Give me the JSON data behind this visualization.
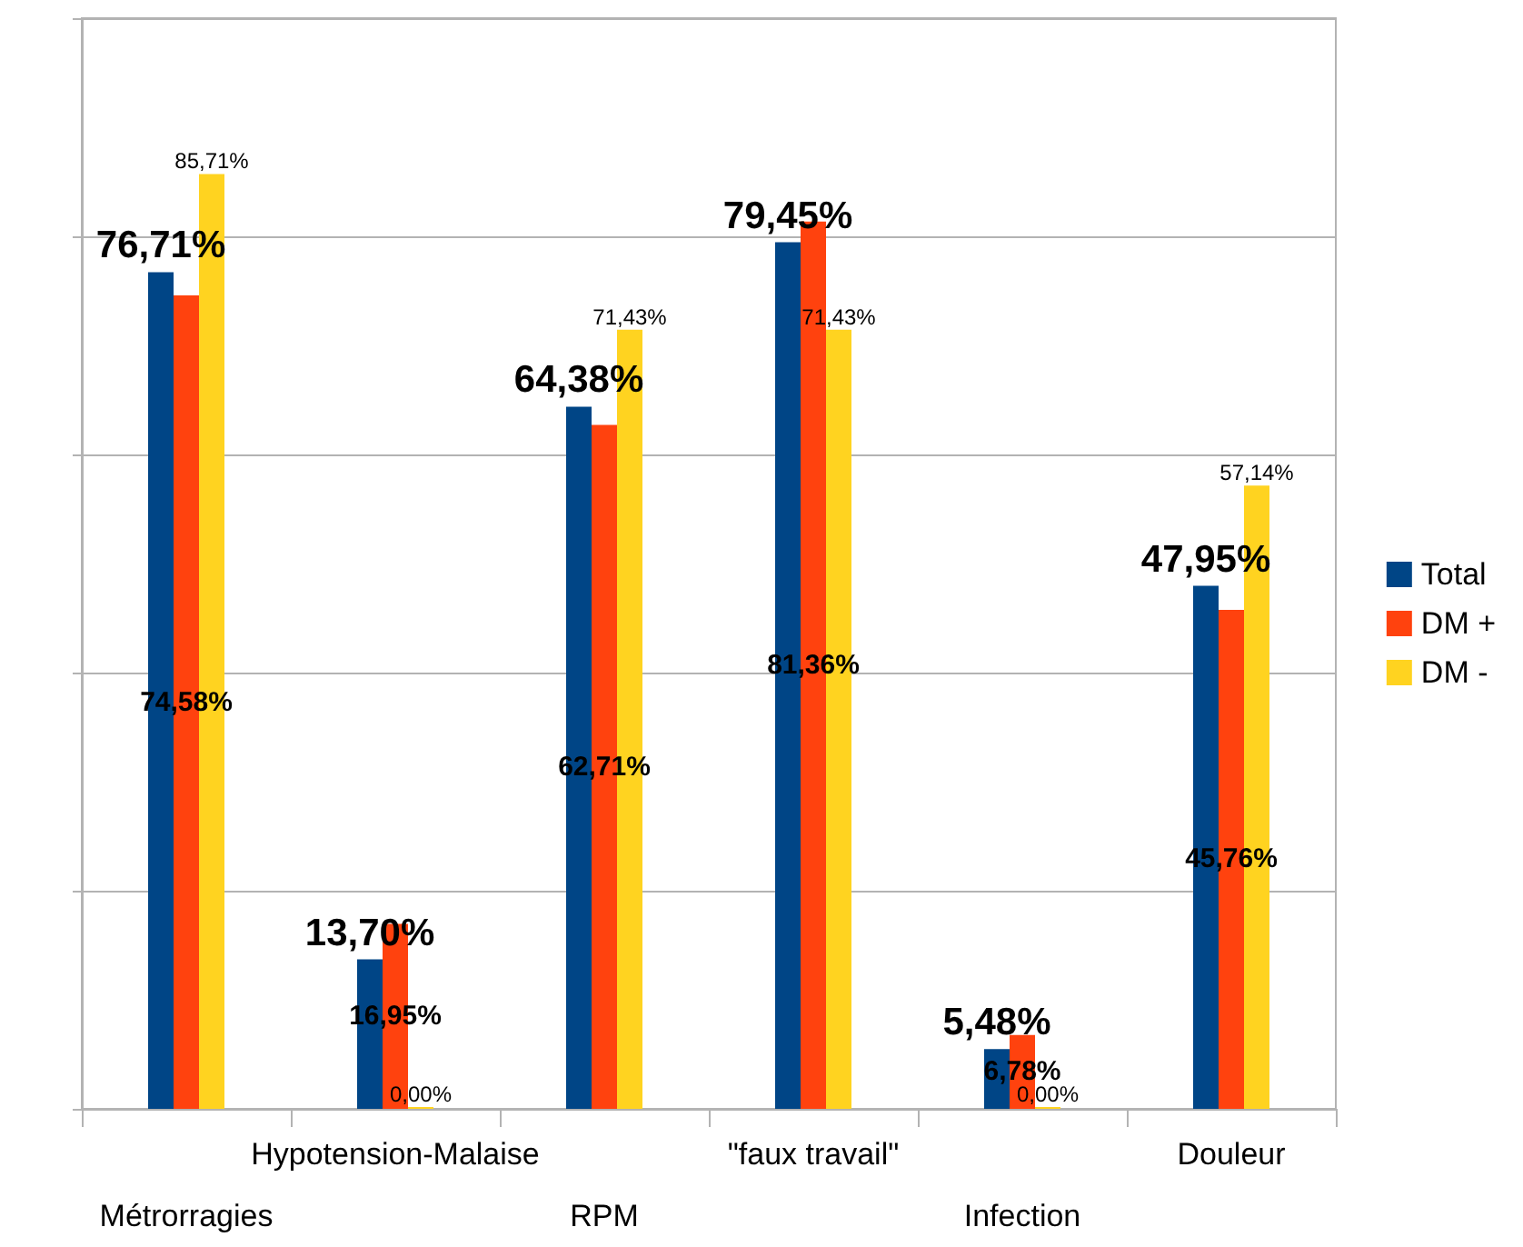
{
  "chart_data": {
    "type": "bar",
    "categories": [
      "Métrorragies",
      "Hypotension-Malaise",
      "RPM",
      "\"faux travail\"",
      "Infection",
      "Douleur"
    ],
    "series": [
      {
        "name": "Total",
        "color": "#004586",
        "values": [
          76.71,
          13.7,
          64.38,
          79.45,
          5.48,
          47.95
        ],
        "value_labels": [
          "76,71%",
          "13,70%",
          "64,38%",
          "79,45%",
          "5,48%",
          "47,95%"
        ]
      },
      {
        "name": "DM +",
        "color": "#ff420e",
        "values": [
          74.58,
          16.95,
          62.71,
          81.36,
          6.78,
          45.76
        ],
        "value_labels": [
          "74,58%",
          "16,95%",
          "62,71%",
          "81,36%",
          "6,78%",
          "45,76%"
        ]
      },
      {
        "name": "DM -",
        "color": "#ffd320",
        "values": [
          85.71,
          0.0,
          71.43,
          71.43,
          0.0,
          57.14
        ],
        "value_labels": [
          "85,71%",
          "0,00%",
          "71,43%",
          "71,43%",
          "0,00%",
          "57,14%"
        ]
      }
    ],
    "ylim": [
      0,
      100
    ],
    "yticks": [
      {
        "value": 0,
        "label": null
      },
      {
        "value": 20,
        "label": null
      },
      {
        "value": 40,
        "label": null
      },
      {
        "value": 60,
        "label": null
      },
      {
        "value": 80,
        "label": null
      },
      {
        "value": 100,
        "label": null
      }
    ],
    "tick_labels": "x",
    "grid": "y",
    "legend": "right"
  }
}
